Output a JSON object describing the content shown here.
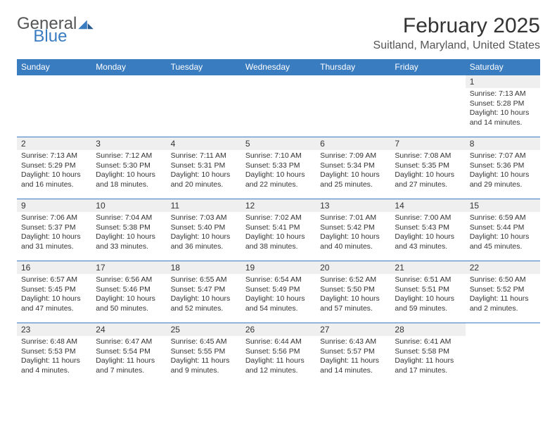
{
  "logo": {
    "text1": "General",
    "text2": "Blue"
  },
  "title": "February 2025",
  "location": "Suitland, Maryland, United States",
  "colors": {
    "header_bg": "#3a7cc0",
    "header_text": "#ffffff",
    "daynum_bg": "#efefef",
    "border": "#3a7cc0",
    "logo_accent": "#3a7cc0"
  },
  "weekdays": [
    "Sunday",
    "Monday",
    "Tuesday",
    "Wednesday",
    "Thursday",
    "Friday",
    "Saturday"
  ],
  "weeks": [
    [
      null,
      null,
      null,
      null,
      null,
      null,
      {
        "n": "1",
        "sr": "Sunrise: 7:13 AM",
        "ss": "Sunset: 5:28 PM",
        "dl": "Daylight: 10 hours and 14 minutes."
      }
    ],
    [
      {
        "n": "2",
        "sr": "Sunrise: 7:13 AM",
        "ss": "Sunset: 5:29 PM",
        "dl": "Daylight: 10 hours and 16 minutes."
      },
      {
        "n": "3",
        "sr": "Sunrise: 7:12 AM",
        "ss": "Sunset: 5:30 PM",
        "dl": "Daylight: 10 hours and 18 minutes."
      },
      {
        "n": "4",
        "sr": "Sunrise: 7:11 AM",
        "ss": "Sunset: 5:31 PM",
        "dl": "Daylight: 10 hours and 20 minutes."
      },
      {
        "n": "5",
        "sr": "Sunrise: 7:10 AM",
        "ss": "Sunset: 5:33 PM",
        "dl": "Daylight: 10 hours and 22 minutes."
      },
      {
        "n": "6",
        "sr": "Sunrise: 7:09 AM",
        "ss": "Sunset: 5:34 PM",
        "dl": "Daylight: 10 hours and 25 minutes."
      },
      {
        "n": "7",
        "sr": "Sunrise: 7:08 AM",
        "ss": "Sunset: 5:35 PM",
        "dl": "Daylight: 10 hours and 27 minutes."
      },
      {
        "n": "8",
        "sr": "Sunrise: 7:07 AM",
        "ss": "Sunset: 5:36 PM",
        "dl": "Daylight: 10 hours and 29 minutes."
      }
    ],
    [
      {
        "n": "9",
        "sr": "Sunrise: 7:06 AM",
        "ss": "Sunset: 5:37 PM",
        "dl": "Daylight: 10 hours and 31 minutes."
      },
      {
        "n": "10",
        "sr": "Sunrise: 7:04 AM",
        "ss": "Sunset: 5:38 PM",
        "dl": "Daylight: 10 hours and 33 minutes."
      },
      {
        "n": "11",
        "sr": "Sunrise: 7:03 AM",
        "ss": "Sunset: 5:40 PM",
        "dl": "Daylight: 10 hours and 36 minutes."
      },
      {
        "n": "12",
        "sr": "Sunrise: 7:02 AM",
        "ss": "Sunset: 5:41 PM",
        "dl": "Daylight: 10 hours and 38 minutes."
      },
      {
        "n": "13",
        "sr": "Sunrise: 7:01 AM",
        "ss": "Sunset: 5:42 PM",
        "dl": "Daylight: 10 hours and 40 minutes."
      },
      {
        "n": "14",
        "sr": "Sunrise: 7:00 AM",
        "ss": "Sunset: 5:43 PM",
        "dl": "Daylight: 10 hours and 43 minutes."
      },
      {
        "n": "15",
        "sr": "Sunrise: 6:59 AM",
        "ss": "Sunset: 5:44 PM",
        "dl": "Daylight: 10 hours and 45 minutes."
      }
    ],
    [
      {
        "n": "16",
        "sr": "Sunrise: 6:57 AM",
        "ss": "Sunset: 5:45 PM",
        "dl": "Daylight: 10 hours and 47 minutes."
      },
      {
        "n": "17",
        "sr": "Sunrise: 6:56 AM",
        "ss": "Sunset: 5:46 PM",
        "dl": "Daylight: 10 hours and 50 minutes."
      },
      {
        "n": "18",
        "sr": "Sunrise: 6:55 AM",
        "ss": "Sunset: 5:47 PM",
        "dl": "Daylight: 10 hours and 52 minutes."
      },
      {
        "n": "19",
        "sr": "Sunrise: 6:54 AM",
        "ss": "Sunset: 5:49 PM",
        "dl": "Daylight: 10 hours and 54 minutes."
      },
      {
        "n": "20",
        "sr": "Sunrise: 6:52 AM",
        "ss": "Sunset: 5:50 PM",
        "dl": "Daylight: 10 hours and 57 minutes."
      },
      {
        "n": "21",
        "sr": "Sunrise: 6:51 AM",
        "ss": "Sunset: 5:51 PM",
        "dl": "Daylight: 10 hours and 59 minutes."
      },
      {
        "n": "22",
        "sr": "Sunrise: 6:50 AM",
        "ss": "Sunset: 5:52 PM",
        "dl": "Daylight: 11 hours and 2 minutes."
      }
    ],
    [
      {
        "n": "23",
        "sr": "Sunrise: 6:48 AM",
        "ss": "Sunset: 5:53 PM",
        "dl": "Daylight: 11 hours and 4 minutes."
      },
      {
        "n": "24",
        "sr": "Sunrise: 6:47 AM",
        "ss": "Sunset: 5:54 PM",
        "dl": "Daylight: 11 hours and 7 minutes."
      },
      {
        "n": "25",
        "sr": "Sunrise: 6:45 AM",
        "ss": "Sunset: 5:55 PM",
        "dl": "Daylight: 11 hours and 9 minutes."
      },
      {
        "n": "26",
        "sr": "Sunrise: 6:44 AM",
        "ss": "Sunset: 5:56 PM",
        "dl": "Daylight: 11 hours and 12 minutes."
      },
      {
        "n": "27",
        "sr": "Sunrise: 6:43 AM",
        "ss": "Sunset: 5:57 PM",
        "dl": "Daylight: 11 hours and 14 minutes."
      },
      {
        "n": "28",
        "sr": "Sunrise: 6:41 AM",
        "ss": "Sunset: 5:58 PM",
        "dl": "Daylight: 11 hours and 17 minutes."
      },
      null
    ]
  ]
}
